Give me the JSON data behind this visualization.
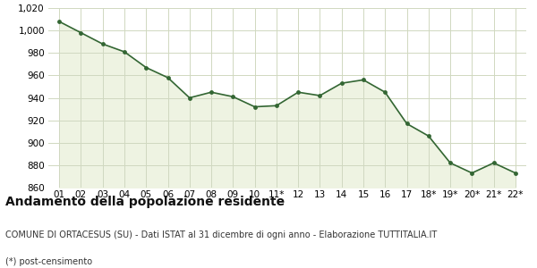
{
  "x_labels": [
    "01",
    "02",
    "03",
    "04",
    "05",
    "06",
    "07",
    "08",
    "09",
    "10",
    "11*",
    "12",
    "13",
    "14",
    "15",
    "16",
    "17",
    "18*",
    "19*",
    "20*",
    "21*",
    "22*"
  ],
  "y_values": [
    1008,
    998,
    988,
    981,
    967,
    958,
    940,
    945,
    941,
    932,
    933,
    945,
    942,
    953,
    956,
    945,
    917,
    906,
    882,
    873,
    882,
    873
  ],
  "line_color": "#336633",
  "fill_color": "#eef3e2",
  "marker_color": "#336633",
  "background_color": "#ffffff",
  "grid_color": "#d0d8c0",
  "ylim": [
    860,
    1020
  ],
  "yticks": [
    860,
    880,
    900,
    920,
    940,
    960,
    980,
    1000,
    1020
  ],
  "title": "Andamento della popolazione residente",
  "subtitle": "COMUNE DI ORTACESUS (SU) - Dati ISTAT al 31 dicembre di ogni anno - Elaborazione TUTTITALIA.IT",
  "footnote": "(*) post-censimento",
  "title_fontsize": 10,
  "subtitle_fontsize": 7,
  "footnote_fontsize": 7
}
